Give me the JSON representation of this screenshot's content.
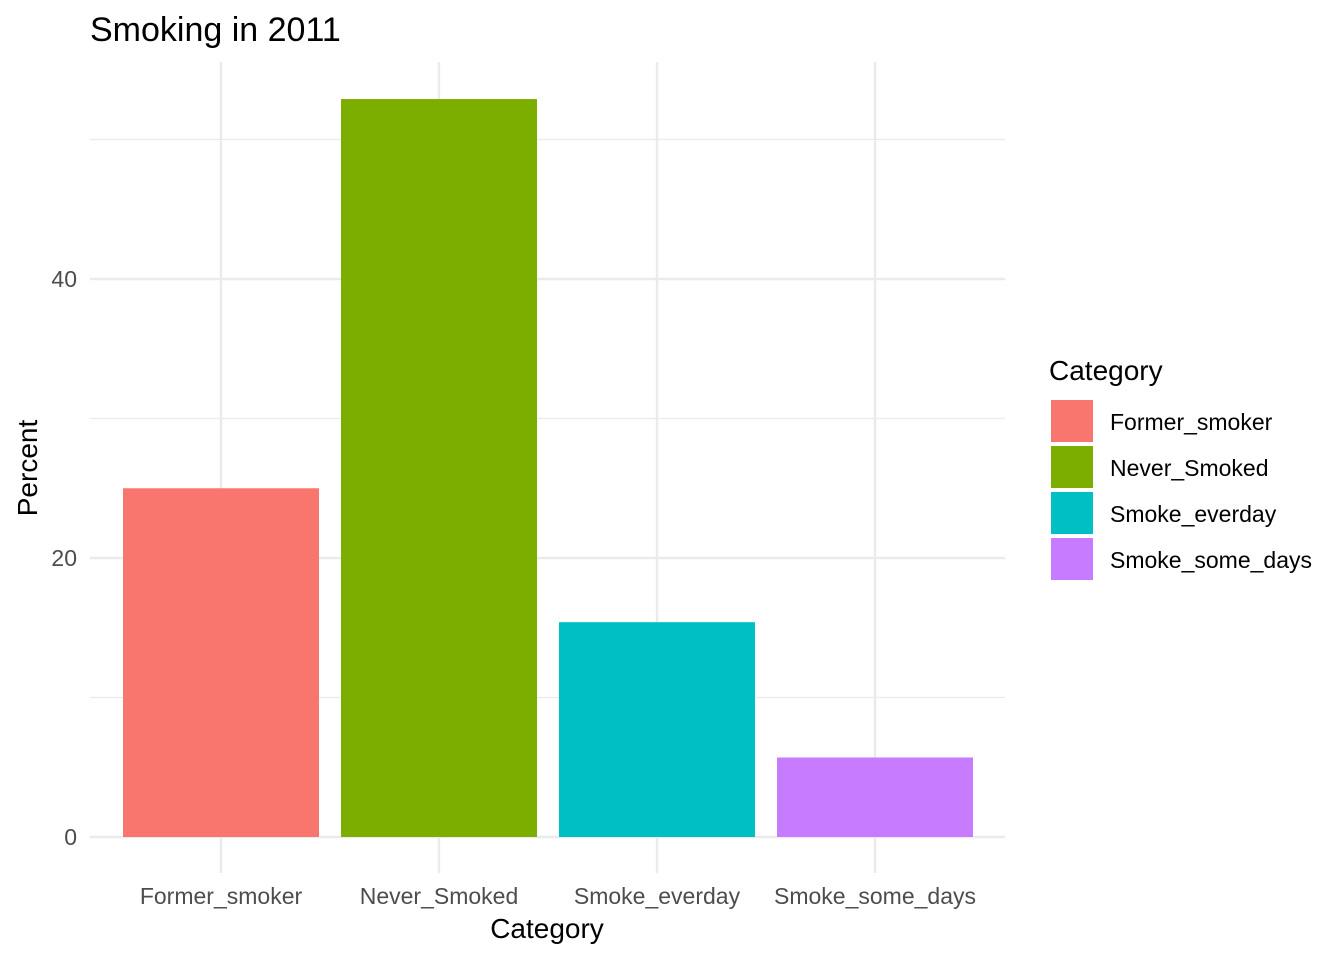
{
  "chart_data": {
    "type": "bar",
    "title": "Smoking in 2011",
    "xlabel": "Category",
    "ylabel": "Percent",
    "categories": [
      "Former_smoker",
      "Never_Smoked",
      "Smoke_everday",
      "Smoke_some_days"
    ],
    "values": [
      25.0,
      52.9,
      15.4,
      5.7
    ],
    "colors": [
      "#F8766D",
      "#7CAE00",
      "#00BFC4",
      "#C77CFF"
    ],
    "ylim": [
      0,
      55
    ],
    "yticks": [
      0,
      20,
      40
    ],
    "yticks_minor": [
      10,
      30,
      50
    ],
    "grid": true,
    "legend": {
      "title": "Category",
      "placement": "right",
      "items": [
        "Former_smoker",
        "Never_Smoked",
        "Smoke_everday",
        "Smoke_some_days"
      ]
    }
  }
}
